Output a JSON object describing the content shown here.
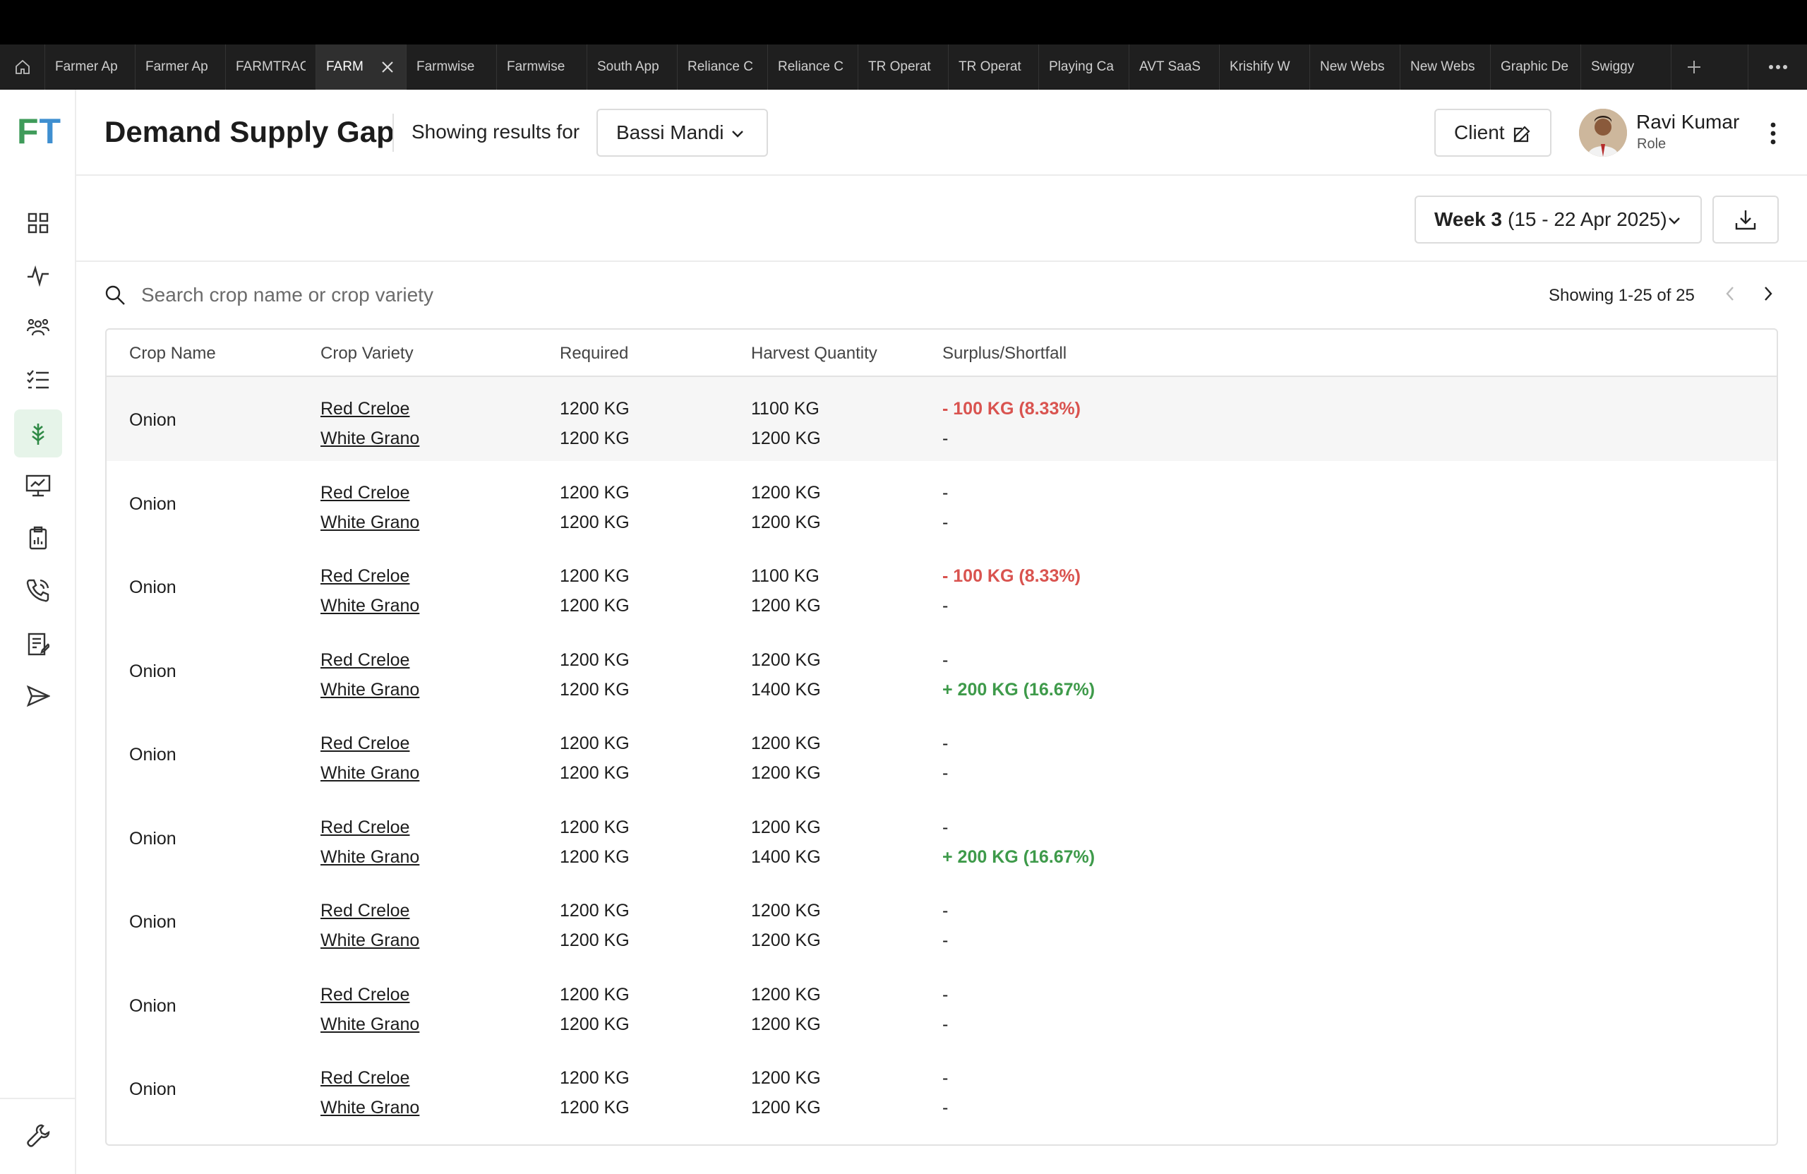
{
  "browser": {
    "tabs": [
      {
        "label": "Farmer Ap",
        "active": false
      },
      {
        "label": "Farmer Ap",
        "active": false
      },
      {
        "label": "FARMTRAC",
        "active": false
      },
      {
        "label": "FARM",
        "active": true
      },
      {
        "label": "Farmwise",
        "active": false
      },
      {
        "label": "Farmwise",
        "active": false
      },
      {
        "label": "South App",
        "active": false
      },
      {
        "label": "Reliance C",
        "active": false
      },
      {
        "label": "Reliance C",
        "active": false
      },
      {
        "label": "TR Operat",
        "active": false
      },
      {
        "label": "TR Operat",
        "active": false
      },
      {
        "label": "Playing Ca",
        "active": false
      },
      {
        "label": "AVT SaaS",
        "active": false
      },
      {
        "label": "Krishify W",
        "active": false
      },
      {
        "label": "New Webs",
        "active": false
      },
      {
        "label": "New Webs",
        "active": false
      },
      {
        "label": "Graphic De",
        "active": false
      },
      {
        "label": "Swiggy",
        "active": false
      }
    ]
  },
  "app": {
    "logo_f": "F",
    "logo_t": "T",
    "accent": "#3f9b5a",
    "sidebar_icons": [
      "dashboard-icon",
      "activity-icon",
      "farmers-icon",
      "checklist-icon",
      "crop-icon",
      "monitor-icon",
      "clipboard-icon",
      "phone-icon",
      "report-icon",
      "send-icon",
      "settings-tool-icon"
    ],
    "active_sidebar_icon": "crop-icon"
  },
  "header": {
    "title": "Demand Supply Gap",
    "showing_label": "Showing results for",
    "mandi_value": "Bassi Mandi",
    "client_label": "Client",
    "user_name": "Ravi Kumar",
    "user_role": "Role"
  },
  "filters": {
    "week_bold": "Week 3",
    "week_range": "(15 - 22 Apr 2025)"
  },
  "search": {
    "placeholder": "Search crop name or crop variety",
    "value": ""
  },
  "pagination": {
    "text": "Showing 1-25 of 25"
  },
  "table": {
    "headers": {
      "crop": "Crop Name",
      "variety": "Crop Variety",
      "required": "Required",
      "harvest": "Harvest Quantity",
      "diff": "Surplus/Shortfall"
    },
    "rows": [
      {
        "crop": "Onion",
        "v1": "Red Creloe",
        "v2": "White Grano",
        "r1": "1200 KG",
        "r2": "1200 KG",
        "h1": "1100 KG",
        "h2": "1200 KG",
        "d1": "- 100 KG (8.33%)",
        "d1_type": "neg",
        "d2": "-",
        "d2_type": "none"
      },
      {
        "crop": "Onion",
        "v1": "Red Creloe",
        "v2": "White Grano",
        "r1": "1200 KG",
        "r2": "1200 KG",
        "h1": "1200 KG",
        "h2": "1200 KG",
        "d1": "-",
        "d1_type": "none",
        "d2": "-",
        "d2_type": "none"
      },
      {
        "crop": "Onion",
        "v1": "Red Creloe",
        "v2": "White Grano",
        "r1": "1200 KG",
        "r2": "1200 KG",
        "h1": "1100 KG",
        "h2": "1200 KG",
        "d1": "- 100 KG (8.33%)",
        "d1_type": "neg",
        "d2": "-",
        "d2_type": "none"
      },
      {
        "crop": "Onion",
        "v1": "Red Creloe",
        "v2": "White Grano",
        "r1": "1200 KG",
        "r2": "1200 KG",
        "h1": "1200 KG",
        "h2": "1400 KG",
        "d1": "-",
        "d1_type": "none",
        "d2": "+ 200 KG (16.67%)",
        "d2_type": "pos"
      },
      {
        "crop": "Onion",
        "v1": "Red Creloe",
        "v2": "White Grano",
        "r1": "1200 KG",
        "r2": "1200 KG",
        "h1": "1200 KG",
        "h2": "1200 KG",
        "d1": "-",
        "d1_type": "none",
        "d2": "-",
        "d2_type": "none"
      },
      {
        "crop": "Onion",
        "v1": "Red Creloe",
        "v2": "White Grano",
        "r1": "1200 KG",
        "r2": "1200 KG",
        "h1": "1200 KG",
        "h2": "1400 KG",
        "d1": "-",
        "d1_type": "none",
        "d2": "+ 200 KG (16.67%)",
        "d2_type": "pos"
      },
      {
        "crop": "Onion",
        "v1": "Red Creloe",
        "v2": "White Grano",
        "r1": "1200 KG",
        "r2": "1200 KG",
        "h1": "1200 KG",
        "h2": "1200 KG",
        "d1": "-",
        "d1_type": "none",
        "d2": "-",
        "d2_type": "none"
      },
      {
        "crop": "Onion",
        "v1": "Red Creloe",
        "v2": "White Grano",
        "r1": "1200 KG",
        "r2": "1200 KG",
        "h1": "1200 KG",
        "h2": "1200 KG",
        "d1": "-",
        "d1_type": "none",
        "d2": "-",
        "d2_type": "none"
      },
      {
        "crop": "Onion",
        "v1": "Red Creloe",
        "v2": "White Grano",
        "r1": "1200 KG",
        "r2": "1200 KG",
        "h1": "1200 KG",
        "h2": "1200 KG",
        "d1": "-",
        "d1_type": "none",
        "d2": "-",
        "d2_type": "none"
      }
    ]
  }
}
